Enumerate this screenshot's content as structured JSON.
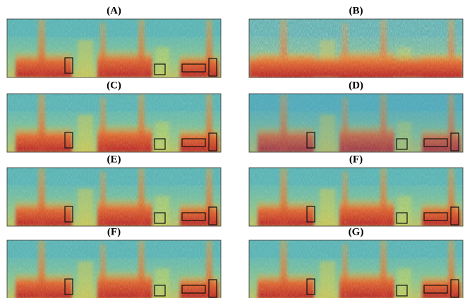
{
  "panels": [
    {
      "label": "(A)"
    },
    {
      "label": "(B)"
    },
    {
      "label": "(C)"
    },
    {
      "label": "(D)"
    },
    {
      "label": "(E)"
    },
    {
      "label": "(F)"
    },
    {
      "label": "(F)"
    },
    {
      "label": "(G)"
    }
  ]
}
